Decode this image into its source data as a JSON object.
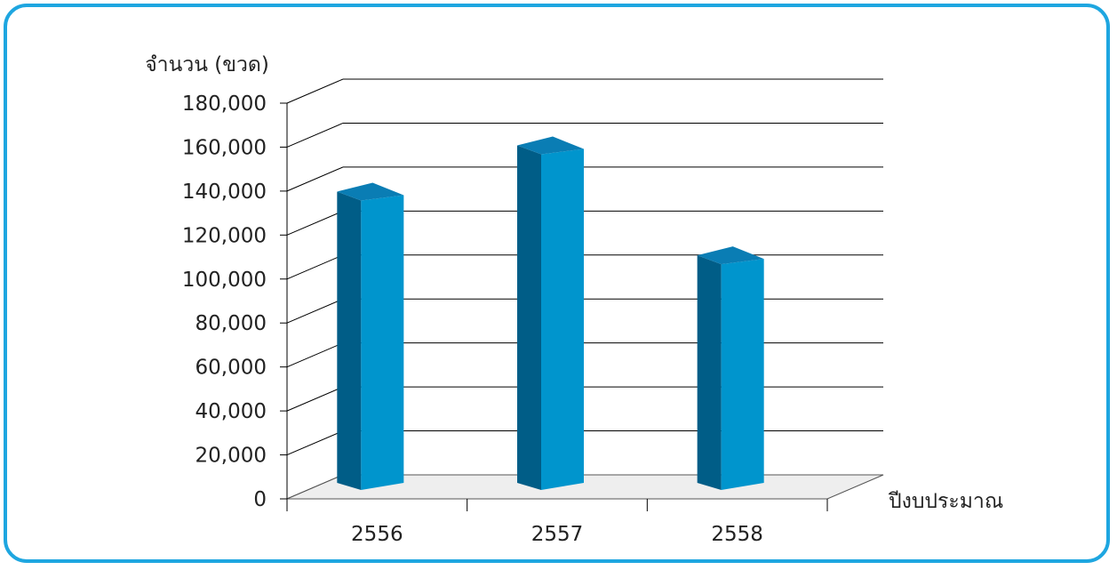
{
  "chart_data": {
    "type": "bar",
    "style": "3d-column",
    "ylabel": "จำนวน (ขวด)",
    "xlabel": "ปีงบประมาณ",
    "categories": [
      "2556",
      "2557",
      "2558"
    ],
    "values": [
      143000,
      164000,
      114000
    ],
    "ylim": [
      0,
      180000
    ],
    "yticks": [
      "0",
      "20,000",
      "40,000",
      "60,000",
      "80,000",
      "100,000",
      "120,000",
      "140,000",
      "160,000",
      "180,000"
    ],
    "grid": true,
    "colors": {
      "front": "#0095cd",
      "side": "#005d87",
      "top": "#0a7db4",
      "floor": "#eeeeee",
      "border": "#1ea6e0"
    }
  }
}
